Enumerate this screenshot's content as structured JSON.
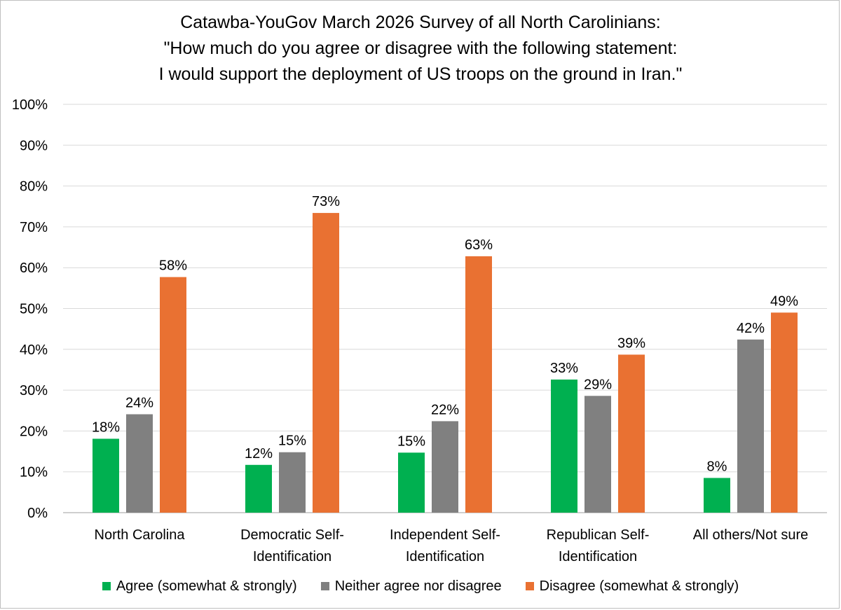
{
  "chart_data": {
    "type": "bar",
    "title_lines": [
      "Catawba-YouGov March 2026 Survey of all North Carolinians:",
      "\"How much do you agree or disagree with the following statement:",
      "I would support the deployment of US troops on the ground in Iran.\""
    ],
    "categories": [
      [
        "North Carolina"
      ],
      [
        "Democratic Self-",
        "Identification"
      ],
      [
        "Independent Self-",
        "Identification"
      ],
      [
        "Republican Self-",
        "Identification"
      ],
      [
        "All others/Not sure"
      ]
    ],
    "series": [
      {
        "name": "Agree (somewhat & strongly)",
        "color": "#00b050",
        "values": [
          18.1,
          11.7,
          14.7,
          32.6,
          8.5
        ],
        "labels": [
          "18%",
          "12%",
          "15%",
          "33%",
          "8%"
        ]
      },
      {
        "name": "Neither agree nor disagree",
        "color": "#808080",
        "values": [
          24.1,
          14.8,
          22.4,
          28.6,
          42.4
        ],
        "labels": [
          "24%",
          "15%",
          "22%",
          "29%",
          "42%"
        ]
      },
      {
        "name": "Disagree (somewhat & strongly)",
        "color": "#e97132",
        "values": [
          57.7,
          73.4,
          62.8,
          38.7,
          49.0
        ],
        "labels": [
          "58%",
          "73%",
          "63%",
          "39%",
          "49%"
        ]
      }
    ],
    "ylim": [
      0,
      100
    ],
    "yticks": [
      0,
      10,
      20,
      30,
      40,
      50,
      60,
      70,
      80,
      90,
      100
    ],
    "ytick_labels": [
      "0%",
      "10%",
      "20%",
      "30%",
      "40%",
      "50%",
      "60%",
      "70%",
      "80%",
      "90%",
      "100%"
    ],
    "grid": true,
    "legend_position": "bottom",
    "gridline_color": "#d9d9d9",
    "axis_color": "#bfbfbf"
  }
}
